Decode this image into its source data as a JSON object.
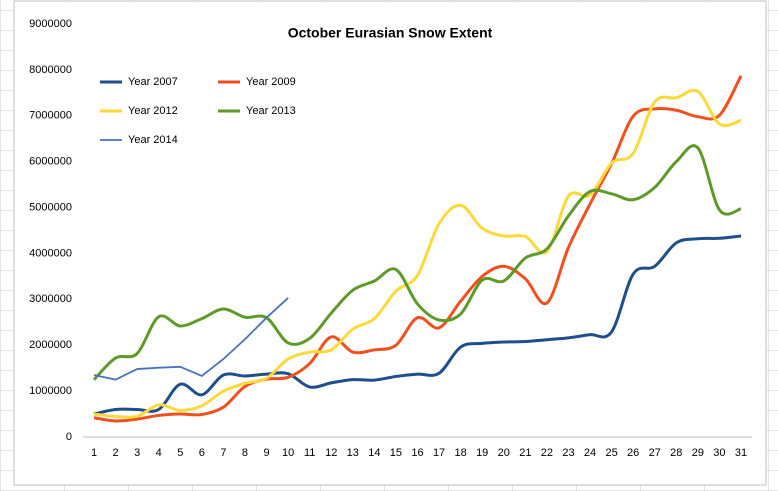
{
  "chart_data": {
    "type": "line",
    "title": "October Eurasian Snow Extent",
    "categories": [
      "1",
      "2",
      "3",
      "4",
      "5",
      "6",
      "7",
      "8",
      "9",
      "10",
      "11",
      "12",
      "13",
      "14",
      "15",
      "16",
      "17",
      "18",
      "19",
      "20",
      "21",
      "22",
      "23",
      "24",
      "25",
      "26",
      "27",
      "28",
      "29",
      "30",
      "31"
    ],
    "ylim": [
      0,
      9000000
    ],
    "yticks": [
      0,
      1000000,
      2000000,
      3000000,
      4000000,
      5000000,
      6000000,
      7000000,
      8000000,
      9000000
    ],
    "grid": false,
    "legend": "top-left",
    "series": [
      {
        "name": "Year 2007",
        "color": "#1f4e8c",
        "smooth": true,
        "values": [
          500000,
          600000,
          600000,
          600000,
          1150000,
          920000,
          1350000,
          1330000,
          1370000,
          1380000,
          1090000,
          1180000,
          1250000,
          1240000,
          1320000,
          1370000,
          1390000,
          1960000,
          2040000,
          2070000,
          2080000,
          2120000,
          2160000,
          2230000,
          2290000,
          3550000,
          3720000,
          4230000,
          4320000,
          4330000,
          4380000
        ]
      },
      {
        "name": "Year 2009",
        "color": "#f0501e",
        "smooth": true,
        "values": [
          420000,
          350000,
          390000,
          470000,
          500000,
          490000,
          650000,
          1100000,
          1260000,
          1300000,
          1600000,
          2180000,
          1850000,
          1900000,
          2000000,
          2600000,
          2380000,
          2960000,
          3500000,
          3720000,
          3450000,
          2920000,
          4130000,
          5080000,
          5960000,
          6990000,
          7150000,
          7120000,
          6980000,
          7010000,
          7870000
        ]
      },
      {
        "name": "Year 2012",
        "color": "#fcd93a",
        "smooth": true,
        "values": [
          500000,
          450000,
          450000,
          700000,
          580000,
          680000,
          1000000,
          1170000,
          1280000,
          1700000,
          1850000,
          1900000,
          2350000,
          2580000,
          3180000,
          3520000,
          4650000,
          5050000,
          4550000,
          4380000,
          4370000,
          4040000,
          5250000,
          5270000,
          5970000,
          6180000,
          7300000,
          7390000,
          7530000,
          6820000,
          6900000
        ]
      },
      {
        "name": "Year 2013",
        "color": "#5e9a2a",
        "smooth": true,
        "values": [
          1250000,
          1720000,
          1820000,
          2620000,
          2420000,
          2580000,
          2790000,
          2610000,
          2600000,
          2050000,
          2150000,
          2700000,
          3200000,
          3400000,
          3650000,
          2900000,
          2550000,
          2680000,
          3420000,
          3400000,
          3900000,
          4100000,
          4820000,
          5350000,
          5300000,
          5170000,
          5440000,
          6000000,
          6300000,
          4950000,
          4970000
        ]
      },
      {
        "name": "Year 2014",
        "color": "#4a72b8",
        "smooth": false,
        "values": [
          1350000,
          1250000,
          1480000,
          1510000,
          1530000,
          1330000,
          1700000,
          2130000,
          2600000,
          3030000,
          null,
          null,
          null,
          null,
          null,
          null,
          null,
          null,
          null,
          null,
          null,
          null,
          null,
          null,
          null,
          null,
          null,
          null,
          null,
          null,
          null
        ]
      }
    ]
  }
}
